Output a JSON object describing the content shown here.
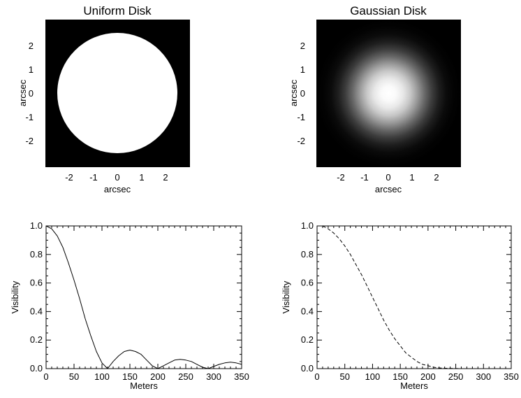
{
  "chart_data": [
    {
      "type": "heatmap",
      "title": "Uniform Disk",
      "xlabel": "arcsec",
      "ylabel": "arcsec",
      "xlim": [
        -3,
        3
      ],
      "ylim": [
        -3,
        3
      ],
      "xticks": [
        -2,
        -1,
        0,
        1,
        2
      ],
      "yticks": [
        -2,
        -1,
        0,
        1,
        2
      ],
      "profile": "uniform",
      "radius": 2.5,
      "background_color": "#000000",
      "disk_color": "#ffffff"
    },
    {
      "type": "heatmap",
      "title": "Gaussian Disk",
      "xlabel": "arcsec",
      "ylabel": "arcsec",
      "xlim": [
        -3,
        3
      ],
      "ylim": [
        -3,
        3
      ],
      "xticks": [
        -2,
        -1,
        0,
        1,
        2
      ],
      "yticks": [
        -2,
        -1,
        0,
        1,
        2
      ],
      "profile": "gaussian",
      "sigma": 1.0,
      "background_color": "#000000",
      "disk_color": "#ffffff"
    },
    {
      "type": "line",
      "title": "",
      "xlabel": "Meters",
      "ylabel": "Visibility",
      "xlim": [
        0,
        350
      ],
      "ylim": [
        0,
        1
      ],
      "xticks": [
        0,
        50,
        100,
        150,
        200,
        250,
        300,
        350
      ],
      "yticks": [
        "0.0",
        "0.2",
        "0.4",
        "0.6",
        "0.8",
        "1.0"
      ],
      "line_style": "solid",
      "series": [
        {
          "x": [
            0,
            10,
            20,
            30,
            40,
            50,
            60,
            70,
            80,
            90,
            100,
            110,
            120,
            130,
            140,
            150,
            160,
            170,
            180,
            190,
            200,
            210,
            220,
            230,
            240,
            250,
            260,
            270,
            280,
            290,
            300,
            310,
            320,
            330,
            340,
            350
          ],
          "values": [
            1.0,
            0.98,
            0.93,
            0.85,
            0.74,
            0.62,
            0.49,
            0.35,
            0.23,
            0.12,
            0.04,
            0.0,
            0.05,
            0.09,
            0.12,
            0.13,
            0.12,
            0.1,
            0.06,
            0.02,
            0.0,
            0.02,
            0.04,
            0.06,
            0.065,
            0.06,
            0.05,
            0.03,
            0.01,
            0.0,
            0.015,
            0.03,
            0.04,
            0.045,
            0.04,
            0.03
          ]
        }
      ]
    },
    {
      "type": "line",
      "title": "",
      "xlabel": "Meters",
      "ylabel": "Visibility",
      "xlim": [
        0,
        350
      ],
      "ylim": [
        0,
        1
      ],
      "xticks": [
        0,
        50,
        100,
        150,
        200,
        250,
        300,
        350
      ],
      "yticks": [
        "0.0",
        "0.2",
        "0.4",
        "0.6",
        "0.8",
        "1.0"
      ],
      "line_style": "dashed",
      "series": [
        {
          "x": [
            0,
            10,
            20,
            30,
            40,
            50,
            60,
            70,
            80,
            90,
            100,
            110,
            120,
            130,
            140,
            150,
            160,
            170,
            180,
            190,
            200,
            210,
            220,
            230,
            240,
            250,
            260,
            270,
            280,
            290,
            300,
            310,
            320,
            330,
            340,
            350
          ],
          "values": [
            1.0,
            1.0,
            0.98,
            0.95,
            0.91,
            0.86,
            0.8,
            0.73,
            0.66,
            0.58,
            0.5,
            0.42,
            0.34,
            0.27,
            0.21,
            0.16,
            0.11,
            0.08,
            0.05,
            0.03,
            0.02,
            0.01,
            0.005,
            0.003,
            0.002,
            0.001,
            0.0,
            0.0,
            0.0,
            0.0,
            0.0,
            0.0,
            0.0,
            0.0,
            0.0,
            0.0
          ]
        }
      ]
    }
  ]
}
